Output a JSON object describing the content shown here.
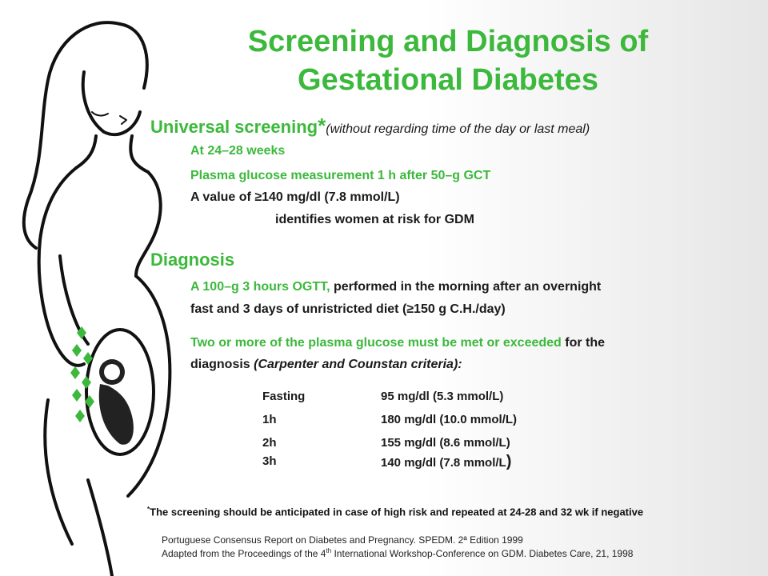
{
  "title": {
    "line1": "Screening and Diagnosis of",
    "line2": "Gestational Diabetes"
  },
  "screening": {
    "heading": "Universal screening",
    "asterisk": "*",
    "qualifier": "(without regarding time of the day or last meal)",
    "line1": "At 24–28 weeks",
    "line2": "Plasma glucose measurement 1 h after 50–g GCT",
    "line3": "A value of ≥140 mg/dl (7.8 mmol/L)",
    "line4": "identifies women at risk for GDM"
  },
  "diagnosis": {
    "heading": "Diagnosis",
    "p1_green": "A 100–g 3 hours OGTT,",
    "p1_dark": " performed in the morning after an overnight",
    "p1_line2": "fast and 3 days of unristricted diet (≥150 g C.H./day)",
    "p2_green": "Two or more of the plasma glucose must be met or exceeded",
    "p2_dark": " for the",
    "p2_line2": "diagnosis ",
    "p2_line2_ital": "(Carpenter and Counstan criteria):",
    "criteria": [
      {
        "time": "Fasting",
        "value": "95 mg/dl (5.3 mmol/L)"
      },
      {
        "time": "1h",
        "value": "180 mg/dl (10.0 mmol/L)"
      },
      {
        "time": "2h",
        "value": "155 mg/dl (8.6 mmol/L)"
      },
      {
        "time": "3h",
        "value": "140 mg/dl (7.8 mmol/L",
        "tail": ")"
      }
    ]
  },
  "footnote": {
    "marker": "*",
    "text": "The screening should be anticipated in case of high risk and repeated at 24-28 and 32 wk if negative"
  },
  "references": {
    "ref1": "Portuguese Consensus Report on Diabetes and Pregnancy.  SPEDM. 2ª Edition 1999",
    "ref2_a": "Adapted from the Proceedings of the 4",
    "ref2_sup": "th",
    "ref2_b": " International  Workshop-Conference on GDM. Diabetes Care, 21, 1998"
  },
  "colors": {
    "accent": "#3cb83c",
    "text": "#1a1a1a"
  }
}
